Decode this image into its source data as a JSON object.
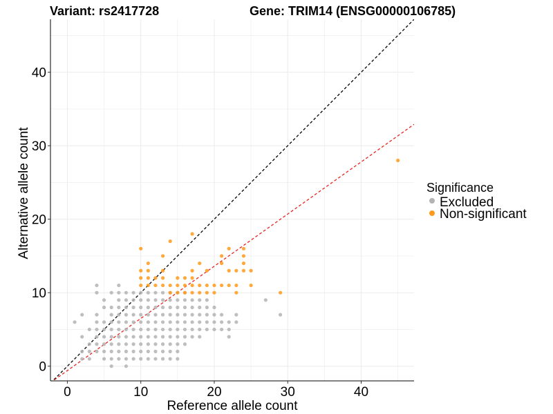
{
  "chart_data": {
    "type": "scatter",
    "title_left": "Variant: rs2417728",
    "title_right": "Gene: TRIM14 (ENSG00000106785)",
    "xlabel": "Reference allele count",
    "ylabel": "Alternative allele count",
    "xlim": [
      -2.3,
      47.2
    ],
    "ylim": [
      -2.0,
      47.2
    ],
    "xticks": [
      0,
      10,
      20,
      30,
      40
    ],
    "yticks": [
      0,
      10,
      20,
      30,
      40
    ],
    "grid": true,
    "legend": {
      "title": "Significance",
      "position": "right",
      "entries": [
        {
          "label": "Excluded",
          "color": "#b3b3b3"
        },
        {
          "label": "Non-significant",
          "color": "#ff9a1a"
        }
      ]
    },
    "reference_lines": [
      {
        "name": "identity",
        "slope": 1.0,
        "intercept": 0,
        "color": "#000000",
        "dash": "dashed"
      },
      {
        "name": "fit",
        "slope": 0.71,
        "intercept": -0.6,
        "color": "#e8241f",
        "dash": "dashed"
      }
    ],
    "series": [
      {
        "name": "Excluded",
        "color": "#b3b3b3",
        "points": [
          [
            1,
            6
          ],
          [
            2,
            7
          ],
          [
            2,
            4
          ],
          [
            2,
            2
          ],
          [
            2,
            1
          ],
          [
            3,
            5
          ],
          [
            3,
            3
          ],
          [
            3,
            2
          ],
          [
            3,
            1
          ],
          [
            4,
            11
          ],
          [
            4,
            10
          ],
          [
            4,
            7
          ],
          [
            4,
            6
          ],
          [
            4,
            5
          ],
          [
            4,
            4
          ],
          [
            4,
            3
          ],
          [
            4,
            2
          ],
          [
            5,
            9
          ],
          [
            5,
            8
          ],
          [
            5,
            6
          ],
          [
            5,
            5
          ],
          [
            5,
            4
          ],
          [
            5,
            3
          ],
          [
            5,
            2
          ],
          [
            5,
            1
          ],
          [
            6,
            10
          ],
          [
            6,
            8
          ],
          [
            6,
            7
          ],
          [
            6,
            6
          ],
          [
            6,
            5
          ],
          [
            6,
            4
          ],
          [
            6,
            3
          ],
          [
            6,
            2
          ],
          [
            6,
            1
          ],
          [
            6,
            0
          ],
          [
            7,
            11
          ],
          [
            7,
            10
          ],
          [
            7,
            9
          ],
          [
            7,
            8
          ],
          [
            7,
            7
          ],
          [
            7,
            6
          ],
          [
            7,
            5
          ],
          [
            7,
            4
          ],
          [
            7,
            3
          ],
          [
            7,
            2
          ],
          [
            7,
            1
          ],
          [
            8,
            10
          ],
          [
            8,
            9
          ],
          [
            8,
            8
          ],
          [
            8,
            7
          ],
          [
            8,
            6
          ],
          [
            8,
            5
          ],
          [
            8,
            4
          ],
          [
            8,
            3
          ],
          [
            8,
            2
          ],
          [
            8,
            1
          ],
          [
            8,
            0
          ],
          [
            9,
            10
          ],
          [
            9,
            9
          ],
          [
            9,
            8
          ],
          [
            9,
            7
          ],
          [
            9,
            6
          ],
          [
            9,
            5
          ],
          [
            9,
            4
          ],
          [
            9,
            3
          ],
          [
            9,
            2
          ],
          [
            9,
            1
          ],
          [
            10,
            10
          ],
          [
            10,
            9
          ],
          [
            10,
            8
          ],
          [
            10,
            7
          ],
          [
            10,
            6
          ],
          [
            10,
            5
          ],
          [
            10,
            4
          ],
          [
            10,
            3
          ],
          [
            10,
            2
          ],
          [
            10,
            1
          ],
          [
            11,
            10
          ],
          [
            11,
            9
          ],
          [
            11,
            8
          ],
          [
            11,
            7
          ],
          [
            11,
            6
          ],
          [
            11,
            5
          ],
          [
            11,
            4
          ],
          [
            11,
            3
          ],
          [
            11,
            2
          ],
          [
            11,
            1
          ],
          [
            12,
            10
          ],
          [
            12,
            9
          ],
          [
            12,
            8
          ],
          [
            12,
            7
          ],
          [
            12,
            6
          ],
          [
            12,
            5
          ],
          [
            12,
            4
          ],
          [
            12,
            3
          ],
          [
            12,
            2
          ],
          [
            12,
            1
          ],
          [
            13,
            10
          ],
          [
            13,
            9
          ],
          [
            13,
            8
          ],
          [
            13,
            7
          ],
          [
            13,
            6
          ],
          [
            13,
            5
          ],
          [
            13,
            4
          ],
          [
            13,
            3
          ],
          [
            13,
            2
          ],
          [
            13,
            1
          ],
          [
            14,
            10
          ],
          [
            14,
            9
          ],
          [
            14,
            8
          ],
          [
            14,
            7
          ],
          [
            14,
            6
          ],
          [
            14,
            5
          ],
          [
            14,
            4
          ],
          [
            14,
            3
          ],
          [
            14,
            2
          ],
          [
            14,
            1
          ],
          [
            15,
            10
          ],
          [
            15,
            9
          ],
          [
            15,
            8
          ],
          [
            15,
            7
          ],
          [
            15,
            6
          ],
          [
            15,
            5
          ],
          [
            15,
            4
          ],
          [
            15,
            3
          ],
          [
            15,
            2
          ],
          [
            15,
            1
          ],
          [
            16,
            10
          ],
          [
            16,
            9
          ],
          [
            16,
            8
          ],
          [
            16,
            7
          ],
          [
            16,
            6
          ],
          [
            16,
            5
          ],
          [
            16,
            4
          ],
          [
            16,
            3
          ],
          [
            17,
            9
          ],
          [
            17,
            8
          ],
          [
            17,
            7
          ],
          [
            17,
            6
          ],
          [
            17,
            5
          ],
          [
            17,
            4
          ],
          [
            18,
            9
          ],
          [
            18,
            8
          ],
          [
            18,
            7
          ],
          [
            18,
            6
          ],
          [
            18,
            5
          ],
          [
            18,
            4
          ],
          [
            19,
            9
          ],
          [
            19,
            8
          ],
          [
            19,
            7
          ],
          [
            19,
            6
          ],
          [
            19,
            5
          ],
          [
            20,
            8
          ],
          [
            20,
            7
          ],
          [
            20,
            6
          ],
          [
            20,
            5
          ],
          [
            21,
            7
          ],
          [
            21,
            6
          ],
          [
            21,
            5
          ],
          [
            22,
            6
          ],
          [
            22,
            5
          ],
          [
            22,
            4
          ],
          [
            23,
            7
          ],
          [
            23,
            6
          ],
          [
            27,
            9
          ],
          [
            29,
            7
          ]
        ]
      },
      {
        "name": "Non-significant",
        "color": "#ff9a1a",
        "points": [
          [
            10,
            16
          ],
          [
            10,
            13
          ],
          [
            10,
            12
          ],
          [
            10,
            11
          ],
          [
            11,
            14
          ],
          [
            11,
            13
          ],
          [
            11,
            12
          ],
          [
            11,
            11
          ],
          [
            12,
            12
          ],
          [
            12,
            11
          ],
          [
            13,
            15
          ],
          [
            13,
            13
          ],
          [
            13,
            12
          ],
          [
            13,
            11
          ],
          [
            14,
            17
          ],
          [
            14,
            11
          ],
          [
            14,
            10
          ],
          [
            15,
            12
          ],
          [
            15,
            11
          ],
          [
            15,
            10
          ],
          [
            16,
            12
          ],
          [
            16,
            11
          ],
          [
            16,
            10
          ],
          [
            17,
            18
          ],
          [
            17,
            13
          ],
          [
            17,
            12
          ],
          [
            17,
            11
          ],
          [
            17,
            10
          ],
          [
            18,
            14
          ],
          [
            18,
            11
          ],
          [
            18,
            10
          ],
          [
            19,
            13
          ],
          [
            19,
            11
          ],
          [
            19,
            10
          ],
          [
            20,
            11
          ],
          [
            20,
            10
          ],
          [
            21,
            15
          ],
          [
            21,
            14
          ],
          [
            21,
            11
          ],
          [
            22,
            16
          ],
          [
            22,
            13
          ],
          [
            22,
            11
          ],
          [
            23,
            13
          ],
          [
            23,
            11
          ],
          [
            23,
            10
          ],
          [
            24,
            16
          ],
          [
            24,
            15
          ],
          [
            24,
            14
          ],
          [
            24,
            13
          ],
          [
            25,
            13
          ],
          [
            25,
            11
          ],
          [
            29,
            10
          ],
          [
            45,
            28
          ]
        ]
      }
    ]
  }
}
